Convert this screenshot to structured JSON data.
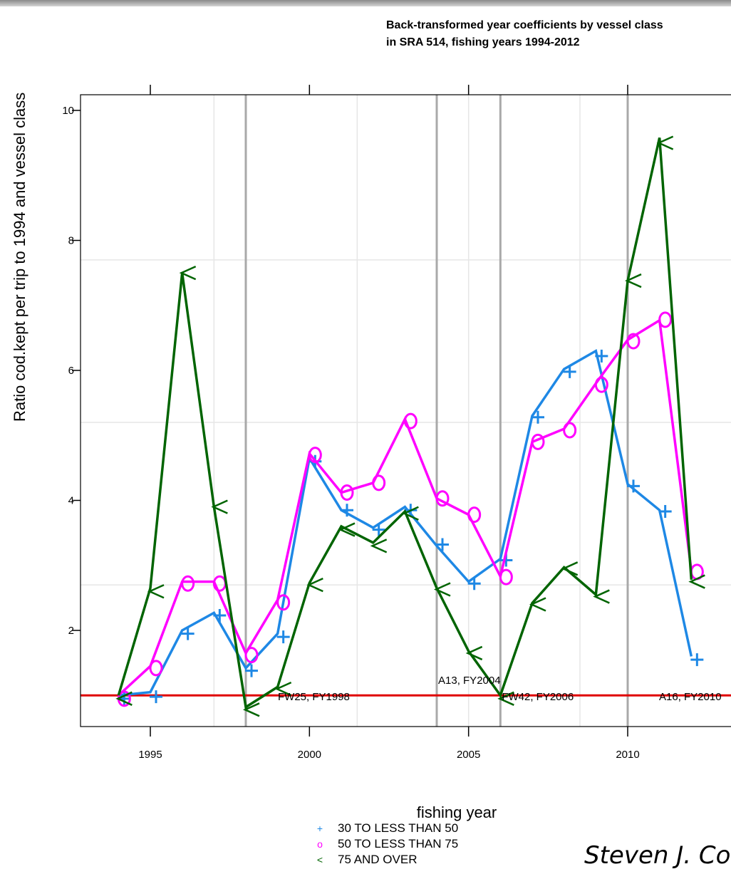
{
  "chart_data": {
    "type": "line",
    "title_line1": "Back-transformed year coefficients by vessel class",
    "title_line2": "in SRA 514, fishing years 1994-2012",
    "xlabel": "fishing year",
    "ylabel": "Ratio cod.kept per trip to 1994 and vessel class",
    "xlim": [
      1992.5,
      2012.7
    ],
    "ylim": [
      0.3,
      10.2
    ],
    "x_ticks": [
      1995,
      2000,
      2005,
      2010
    ],
    "y_ticks": [
      2,
      4,
      6,
      8,
      10
    ],
    "grid_y": [
      2.7,
      5.2,
      7.7
    ],
    "grid_x": [
      1997,
      2001.5,
      2005,
      2008.5
    ],
    "reference_line": {
      "y": 1,
      "color": "#e00000"
    },
    "x": [
      1994,
      1995,
      1996,
      1997,
      1998,
      1999,
      2000,
      2001,
      2002,
      2003,
      2004,
      2005,
      2006,
      2007,
      2008,
      2009,
      2010,
      2011,
      2012
    ],
    "series": [
      {
        "name": "30 TO LESS THAN 50",
        "symbol": "+",
        "color": "#1e88e5",
        "fit": [
          1.0,
          1.05,
          2.0,
          2.27,
          1.42,
          1.95,
          4.65,
          3.85,
          3.58,
          3.9,
          3.3,
          2.75,
          3.1,
          5.3,
          6.02,
          6.3,
          4.25,
          3.85,
          1.6
        ],
        "points": [
          0.95,
          0.98,
          1.95,
          2.23,
          1.38,
          1.9,
          4.6,
          3.85,
          3.55,
          3.85,
          3.32,
          2.72,
          3.08,
          5.28,
          5.98,
          6.22,
          4.22,
          3.83,
          1.55
        ]
      },
      {
        "name": "50 TO LESS THAN 75",
        "symbol": "o",
        "color": "#ff00ff",
        "fit": [
          1.0,
          1.45,
          2.75,
          2.75,
          1.65,
          2.47,
          4.72,
          4.12,
          4.27,
          5.25,
          4.03,
          3.78,
          2.83,
          4.9,
          5.1,
          5.8,
          6.47,
          6.77,
          2.92
        ],
        "points": [
          0.95,
          1.42,
          2.72,
          2.72,
          1.62,
          2.43,
          4.7,
          4.12,
          4.27,
          5.22,
          4.03,
          3.78,
          2.82,
          4.9,
          5.08,
          5.78,
          6.45,
          6.78,
          2.9
        ]
      },
      {
        "name": "75 AND OVER",
        "symbol": "<",
        "color": "#006400",
        "fit": [
          1.0,
          2.65,
          7.5,
          3.9,
          0.82,
          1.13,
          2.73,
          3.6,
          3.35,
          3.83,
          2.65,
          1.68,
          1.0,
          2.42,
          2.97,
          2.55,
          7.38,
          9.58,
          2.78
        ],
        "points": [
          0.95,
          2.6,
          7.5,
          3.9,
          0.78,
          1.1,
          2.7,
          3.55,
          3.3,
          3.8,
          2.63,
          1.65,
          0.95,
          2.4,
          2.95,
          2.52,
          7.38,
          9.5,
          2.75
        ]
      }
    ],
    "vertical_lines": [
      {
        "x": 1998,
        "label": "FW25, FY1998"
      },
      {
        "x": 2004,
        "label": "A13, FY2004"
      },
      {
        "x": 2006,
        "label": "FW42, FY2006"
      },
      {
        "x": 2010,
        "label": "A16, FY2010"
      }
    ],
    "legend": [
      {
        "symbol": "+",
        "label": "30 TO LESS THAN 50",
        "color": "#1e88e5"
      },
      {
        "symbol": "o",
        "label": "50 TO LESS THAN 75",
        "color": "#ff00ff"
      },
      {
        "symbol": "<",
        "label": "75 AND OVER",
        "color": "#006400"
      }
    ],
    "legend_position": "bottom-left"
  },
  "footer": {
    "author": "Steven J. Correia"
  }
}
